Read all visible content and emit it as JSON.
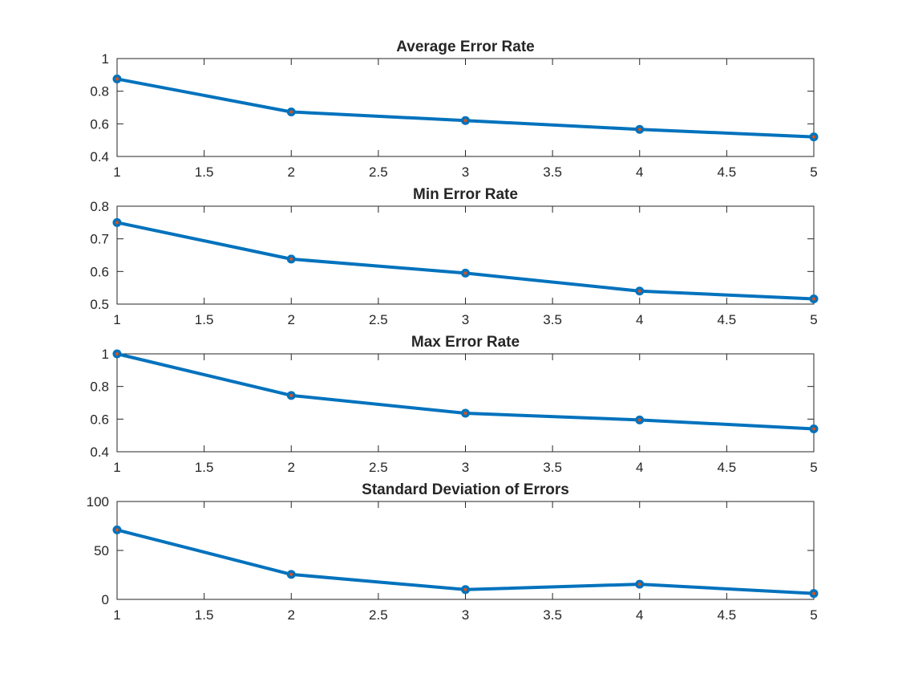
{
  "figure": {
    "background": "#ffffff"
  },
  "style": {
    "line_color": "#0072BD",
    "marker_edge_color": "#0072BD",
    "marker_center_color": "#D95319",
    "axis_color": "#262626"
  },
  "chart_data": [
    {
      "type": "line",
      "title": "Average Error Rate",
      "xlabel": "",
      "ylabel": "",
      "x": [
        1,
        2,
        3,
        4,
        5
      ],
      "series": [
        {
          "values": [
            0.875,
            0.673,
            0.62,
            0.566,
            0.52
          ]
        }
      ],
      "xlim": [
        1,
        5
      ],
      "ylim": [
        0.4,
        1
      ],
      "xticks": [
        1,
        1.5,
        2,
        2.5,
        3,
        3.5,
        4,
        4.5,
        5
      ],
      "xtick_labels": [
        "1",
        "1.5",
        "2",
        "2.5",
        "3",
        "3.5",
        "4",
        "4.5",
        "5"
      ],
      "yticks": [
        0.4,
        0.6,
        0.8,
        1
      ],
      "ytick_labels": [
        "0.4",
        "0.6",
        "0.8",
        "1"
      ],
      "grid": false,
      "legend": "none"
    },
    {
      "type": "line",
      "title": "Min Error Rate",
      "xlabel": "",
      "ylabel": "",
      "x": [
        1,
        2,
        3,
        4,
        5
      ],
      "series": [
        {
          "values": [
            0.75,
            0.638,
            0.595,
            0.54,
            0.516
          ]
        }
      ],
      "xlim": [
        1,
        5
      ],
      "ylim": [
        0.5,
        0.8
      ],
      "xticks": [
        1,
        1.5,
        2,
        2.5,
        3,
        3.5,
        4,
        4.5,
        5
      ],
      "xtick_labels": [
        "1",
        "1.5",
        "2",
        "2.5",
        "3",
        "3.5",
        "4",
        "4.5",
        "5"
      ],
      "yticks": [
        0.5,
        0.6,
        0.7,
        0.8
      ],
      "ytick_labels": [
        "0.5",
        "0.6",
        "0.7",
        "0.8"
      ],
      "grid": false,
      "legend": "none"
    },
    {
      "type": "line",
      "title": "Max Error Rate",
      "xlabel": "",
      "ylabel": "",
      "x": [
        1,
        2,
        3,
        4,
        5
      ],
      "series": [
        {
          "values": [
            1.0,
            0.745,
            0.636,
            0.595,
            0.54
          ]
        }
      ],
      "xlim": [
        1,
        5
      ],
      "ylim": [
        0.4,
        1
      ],
      "xticks": [
        1,
        1.5,
        2,
        2.5,
        3,
        3.5,
        4,
        4.5,
        5
      ],
      "xtick_labels": [
        "1",
        "1.5",
        "2",
        "2.5",
        "3",
        "3.5",
        "4",
        "4.5",
        "5"
      ],
      "yticks": [
        0.4,
        0.6,
        0.8,
        1
      ],
      "ytick_labels": [
        "0.4",
        "0.6",
        "0.8",
        "1"
      ],
      "grid": false,
      "legend": "none"
    },
    {
      "type": "line",
      "title": "Standard Deviation of Errors",
      "xlabel": "",
      "ylabel": "",
      "x": [
        1,
        2,
        3,
        4,
        5
      ],
      "series": [
        {
          "values": [
            71,
            25.5,
            10,
            15.5,
            6
          ]
        }
      ],
      "xlim": [
        1,
        5
      ],
      "ylim": [
        0,
        100
      ],
      "xticks": [
        1,
        1.5,
        2,
        2.5,
        3,
        3.5,
        4,
        4.5,
        5
      ],
      "xtick_labels": [
        "1",
        "1.5",
        "2",
        "2.5",
        "3",
        "3.5",
        "4",
        "4.5",
        "5"
      ],
      "yticks": [
        0,
        50,
        100
      ],
      "ytick_labels": [
        "0",
        "50",
        "100"
      ],
      "grid": false,
      "legend": "none"
    }
  ]
}
